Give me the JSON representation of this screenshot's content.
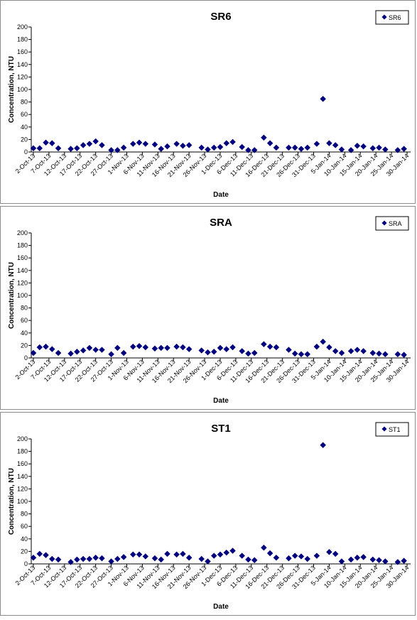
{
  "chart_data": [
    {
      "type": "scatter",
      "title": "SR6",
      "xlabel": "Date",
      "ylabel": "Concentration, NTU",
      "ylim": [
        0,
        200
      ],
      "yticks": [
        0,
        20,
        40,
        60,
        80,
        100,
        120,
        140,
        160,
        180,
        200
      ],
      "xlim": [
        "2-Oct-13",
        "30-Jan-14"
      ],
      "xticks": [
        "2-Oct-13",
        "7-Oct-13",
        "12-Oct-13",
        "17-Oct-13",
        "22-Oct-13",
        "27-Oct-13",
        "1-Nov-13",
        "6-Nov-13",
        "11-Nov-13",
        "16-Nov-13",
        "21-Nov-13",
        "26-Nov-13",
        "1-Dec-13",
        "6-Dec-13",
        "11-Dec-13",
        "16-Dec-13",
        "21-Dec-13",
        "26-Dec-13",
        "31-Dec-13",
        "5-Jan-14",
        "10-Jan-14",
        "15-Jan-14",
        "20-Jan-14",
        "25-Jan-14",
        "30-Jan-14"
      ],
      "grid": false,
      "legend_position": "top-right",
      "marker_color": "#00007f",
      "series": [
        {
          "name": "SR6",
          "points": [
            {
              "x": "2-Oct-13",
              "y": 6
            },
            {
              "x": "4-Oct-13",
              "y": 6
            },
            {
              "x": "6-Oct-13",
              "y": 15
            },
            {
              "x": "8-Oct-13",
              "y": 14
            },
            {
              "x": "10-Oct-13",
              "y": 6
            },
            {
              "x": "14-Oct-13",
              "y": 5
            },
            {
              "x": "16-Oct-13",
              "y": 6
            },
            {
              "x": "18-Oct-13",
              "y": 11
            },
            {
              "x": "20-Oct-13",
              "y": 13
            },
            {
              "x": "22-Oct-13",
              "y": 17
            },
            {
              "x": "24-Oct-13",
              "y": 11
            },
            {
              "x": "27-Oct-13",
              "y": 3
            },
            {
              "x": "29-Oct-13",
              "y": 3
            },
            {
              "x": "31-Oct-13",
              "y": 7
            },
            {
              "x": "3-Nov-13",
              "y": 13
            },
            {
              "x": "5-Nov-13",
              "y": 15
            },
            {
              "x": "7-Nov-13",
              "y": 13
            },
            {
              "x": "10-Nov-13",
              "y": 12
            },
            {
              "x": "12-Nov-13",
              "y": 5
            },
            {
              "x": "14-Nov-13",
              "y": 9
            },
            {
              "x": "17-Nov-13",
              "y": 13
            },
            {
              "x": "19-Nov-13",
              "y": 10
            },
            {
              "x": "21-Nov-13",
              "y": 11
            },
            {
              "x": "25-Nov-13",
              "y": 7
            },
            {
              "x": "27-Nov-13",
              "y": 4
            },
            {
              "x": "29-Nov-13",
              "y": 7
            },
            {
              "x": "1-Dec-13",
              "y": 8
            },
            {
              "x": "3-Dec-13",
              "y": 14
            },
            {
              "x": "5-Dec-13",
              "y": 16
            },
            {
              "x": "8-Dec-13",
              "y": 8
            },
            {
              "x": "10-Dec-13",
              "y": 3
            },
            {
              "x": "12-Dec-13",
              "y": 3
            },
            {
              "x": "15-Dec-13",
              "y": 23
            },
            {
              "x": "17-Dec-13",
              "y": 14
            },
            {
              "x": "19-Dec-13",
              "y": 7
            },
            {
              "x": "23-Dec-13",
              "y": 7
            },
            {
              "x": "25-Dec-13",
              "y": 7
            },
            {
              "x": "27-Dec-13",
              "y": 5
            },
            {
              "x": "29-Dec-13",
              "y": 7
            },
            {
              "x": "1-Jan-14",
              "y": 13
            },
            {
              "x": "3-Jan-14",
              "y": 85
            },
            {
              "x": "5-Jan-14",
              "y": 14
            },
            {
              "x": "7-Jan-14",
              "y": 11
            },
            {
              "x": "9-Jan-14",
              "y": 4
            },
            {
              "x": "12-Jan-14",
              "y": 3
            },
            {
              "x": "14-Jan-14",
              "y": 10
            },
            {
              "x": "16-Jan-14",
              "y": 9
            },
            {
              "x": "19-Jan-14",
              "y": 6
            },
            {
              "x": "21-Jan-14",
              "y": 7
            },
            {
              "x": "23-Jan-14",
              "y": 4
            },
            {
              "x": "27-Jan-14",
              "y": 3
            },
            {
              "x": "29-Jan-14",
              "y": 5
            }
          ]
        }
      ]
    },
    {
      "type": "scatter",
      "title": "SRA",
      "xlabel": "Date",
      "ylabel": "Concentration, NTU",
      "ylim": [
        0,
        200
      ],
      "yticks": [
        0,
        20,
        40,
        60,
        80,
        100,
        120,
        140,
        160,
        180,
        200
      ],
      "xlim": [
        "2-Oct-13",
        "30-Jan-14"
      ],
      "xticks": [
        "2-Oct-13",
        "7-Oct-13",
        "12-Oct-13",
        "17-Oct-13",
        "22-Oct-13",
        "27-Oct-13",
        "1-Nov-13",
        "6-Nov-13",
        "11-Nov-13",
        "16-Nov-13",
        "21-Nov-13",
        "26-Nov-13",
        "1-Dec-13",
        "6-Dec-13",
        "11-Dec-13",
        "16-Dec-13",
        "21-Dec-13",
        "26-Dec-13",
        "31-Dec-13",
        "5-Jan-14",
        "10-Jan-14",
        "15-Jan-14",
        "20-Jan-14",
        "25-Jan-14",
        "30-Jan-14"
      ],
      "grid": false,
      "legend_position": "top-right",
      "marker_color": "#00007f",
      "series": [
        {
          "name": "SRA",
          "points": [
            {
              "x": "2-Oct-13",
              "y": 8
            },
            {
              "x": "4-Oct-13",
              "y": 17
            },
            {
              "x": "6-Oct-13",
              "y": 18
            },
            {
              "x": "8-Oct-13",
              "y": 14
            },
            {
              "x": "10-Oct-13",
              "y": 8
            },
            {
              "x": "14-Oct-13",
              "y": 7
            },
            {
              "x": "16-Oct-13",
              "y": 10
            },
            {
              "x": "18-Oct-13",
              "y": 12
            },
            {
              "x": "20-Oct-13",
              "y": 16
            },
            {
              "x": "22-Oct-13",
              "y": 13
            },
            {
              "x": "24-Oct-13",
              "y": 13
            },
            {
              "x": "27-Oct-13",
              "y": 6
            },
            {
              "x": "29-Oct-13",
              "y": 16
            },
            {
              "x": "31-Oct-13",
              "y": 8
            },
            {
              "x": "3-Nov-13",
              "y": 18
            },
            {
              "x": "5-Nov-13",
              "y": 19
            },
            {
              "x": "7-Nov-13",
              "y": 17
            },
            {
              "x": "10-Nov-13",
              "y": 15
            },
            {
              "x": "12-Nov-13",
              "y": 16
            },
            {
              "x": "14-Nov-13",
              "y": 16
            },
            {
              "x": "17-Nov-13",
              "y": 18
            },
            {
              "x": "19-Nov-13",
              "y": 17
            },
            {
              "x": "21-Nov-13",
              "y": 14
            },
            {
              "x": "25-Nov-13",
              "y": 12
            },
            {
              "x": "27-Nov-13",
              "y": 9
            },
            {
              "x": "29-Nov-13",
              "y": 10
            },
            {
              "x": "1-Dec-13",
              "y": 16
            },
            {
              "x": "3-Dec-13",
              "y": 14
            },
            {
              "x": "5-Dec-13",
              "y": 17
            },
            {
              "x": "8-Dec-13",
              "y": 11
            },
            {
              "x": "10-Dec-13",
              "y": 7
            },
            {
              "x": "12-Dec-13",
              "y": 8
            },
            {
              "x": "15-Dec-13",
              "y": 22
            },
            {
              "x": "17-Dec-13",
              "y": 18
            },
            {
              "x": "19-Dec-13",
              "y": 17
            },
            {
              "x": "23-Dec-13",
              "y": 13
            },
            {
              "x": "25-Dec-13",
              "y": 7
            },
            {
              "x": "27-Dec-13",
              "y": 6
            },
            {
              "x": "29-Dec-13",
              "y": 6
            },
            {
              "x": "1-Jan-14",
              "y": 18
            },
            {
              "x": "3-Jan-14",
              "y": 26
            },
            {
              "x": "5-Jan-14",
              "y": 17
            },
            {
              "x": "7-Jan-14",
              "y": 11
            },
            {
              "x": "9-Jan-14",
              "y": 8
            },
            {
              "x": "12-Jan-14",
              "y": 11
            },
            {
              "x": "14-Jan-14",
              "y": 13
            },
            {
              "x": "16-Jan-14",
              "y": 11
            },
            {
              "x": "19-Jan-14",
              "y": 8
            },
            {
              "x": "21-Jan-14",
              "y": 7
            },
            {
              "x": "23-Jan-14",
              "y": 6
            },
            {
              "x": "27-Jan-14",
              "y": 6
            },
            {
              "x": "29-Jan-14",
              "y": 5
            }
          ]
        }
      ]
    },
    {
      "type": "scatter",
      "title": "ST1",
      "xlabel": "Date",
      "ylabel": "Concentration, NTU",
      "ylim": [
        0,
        200
      ],
      "yticks": [
        0,
        20,
        40,
        60,
        80,
        100,
        120,
        140,
        160,
        180,
        200
      ],
      "xlim": [
        "2-Oct-13",
        "30-Jan-14"
      ],
      "xticks": [
        "2-Oct-13",
        "7-Oct-13",
        "12-Oct-13",
        "17-Oct-13",
        "22-Oct-13",
        "27-Oct-13",
        "1-Nov-13",
        "6-Nov-13",
        "11-Nov-13",
        "16-Nov-13",
        "21-Nov-13",
        "26-Nov-13",
        "1-Dec-13",
        "6-Dec-13",
        "11-Dec-13",
        "16-Dec-13",
        "21-Dec-13",
        "26-Dec-13",
        "31-Dec-13",
        "5-Jan-14",
        "10-Jan-14",
        "15-Jan-14",
        "20-Jan-14",
        "25-Jan-14",
        "30-Jan-14"
      ],
      "grid": false,
      "legend_position": "top-right",
      "marker_color": "#00007f",
      "series": [
        {
          "name": "ST1",
          "points": [
            {
              "x": "2-Oct-13",
              "y": 10
            },
            {
              "x": "4-Oct-13",
              "y": 16
            },
            {
              "x": "6-Oct-13",
              "y": 14
            },
            {
              "x": "8-Oct-13",
              "y": 8
            },
            {
              "x": "10-Oct-13",
              "y": 7
            },
            {
              "x": "14-Oct-13",
              "y": 3
            },
            {
              "x": "16-Oct-13",
              "y": 7
            },
            {
              "x": "18-Oct-13",
              "y": 8
            },
            {
              "x": "20-Oct-13",
              "y": 8
            },
            {
              "x": "22-Oct-13",
              "y": 10
            },
            {
              "x": "24-Oct-13",
              "y": 9
            },
            {
              "x": "27-Oct-13",
              "y": 4
            },
            {
              "x": "29-Oct-13",
              "y": 8
            },
            {
              "x": "31-Oct-13",
              "y": 11
            },
            {
              "x": "3-Nov-13",
              "y": 15
            },
            {
              "x": "5-Nov-13",
              "y": 15
            },
            {
              "x": "7-Nov-13",
              "y": 12
            },
            {
              "x": "10-Nov-13",
              "y": 9
            },
            {
              "x": "12-Nov-13",
              "y": 7
            },
            {
              "x": "14-Nov-13",
              "y": 16
            },
            {
              "x": "17-Nov-13",
              "y": 15
            },
            {
              "x": "19-Nov-13",
              "y": 16
            },
            {
              "x": "21-Nov-13",
              "y": 10
            },
            {
              "x": "25-Nov-13",
              "y": 8
            },
            {
              "x": "27-Nov-13",
              "y": 4
            },
            {
              "x": "29-Nov-13",
              "y": 13
            },
            {
              "x": "1-Dec-13",
              "y": 15
            },
            {
              "x": "3-Dec-13",
              "y": 18
            },
            {
              "x": "5-Dec-13",
              "y": 21
            },
            {
              "x": "8-Dec-13",
              "y": 13
            },
            {
              "x": "10-Dec-13",
              "y": 7
            },
            {
              "x": "12-Dec-13",
              "y": 6
            },
            {
              "x": "15-Dec-13",
              "y": 26
            },
            {
              "x": "17-Dec-13",
              "y": 17
            },
            {
              "x": "19-Dec-13",
              "y": 10
            },
            {
              "x": "23-Dec-13",
              "y": 9
            },
            {
              "x": "25-Dec-13",
              "y": 13
            },
            {
              "x": "27-Dec-13",
              "y": 12
            },
            {
              "x": "29-Dec-13",
              "y": 8
            },
            {
              "x": "1-Jan-14",
              "y": 13
            },
            {
              "x": "3-Jan-14",
              "y": 190
            },
            {
              "x": "5-Jan-14",
              "y": 19
            },
            {
              "x": "7-Jan-14",
              "y": 16
            },
            {
              "x": "9-Jan-14",
              "y": 4
            },
            {
              "x": "12-Jan-14",
              "y": 7
            },
            {
              "x": "14-Jan-14",
              "y": 10
            },
            {
              "x": "16-Jan-14",
              "y": 11
            },
            {
              "x": "19-Jan-14",
              "y": 7
            },
            {
              "x": "21-Jan-14",
              "y": 6
            },
            {
              "x": "23-Jan-14",
              "y": 4
            },
            {
              "x": "27-Jan-14",
              "y": 3
            },
            {
              "x": "29-Jan-14",
              "y": 5
            }
          ]
        }
      ]
    }
  ]
}
